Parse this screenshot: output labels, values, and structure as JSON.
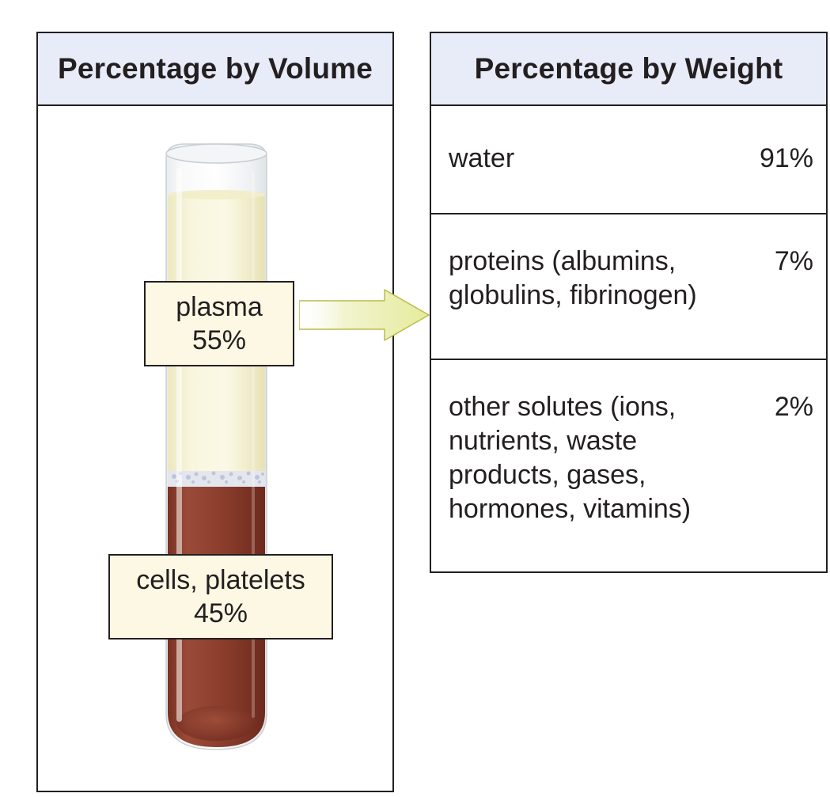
{
  "volume_panel": {
    "title": "Percentage by Volume",
    "plasma": {
      "label": "plasma",
      "percent": "55%"
    },
    "cells": {
      "label": "cells, platelets",
      "percent": "45%"
    }
  },
  "weight_panel": {
    "title": "Percentage by Weight",
    "rows": [
      {
        "name": "water",
        "percent": "91%"
      },
      {
        "name": "proteins (albumins,\nglobulins, fibrinogen)",
        "percent": "7%"
      },
      {
        "name": "other solutes (ions,\nnutrients, waste\nproducts, gases,\nhormones, vitamins)",
        "percent": "2%"
      }
    ]
  },
  "colors": {
    "header_fill": "#e8ebf8",
    "plasma_fill": "#f6f3d6",
    "cells_fill": "#8a3a2a",
    "label_fill": "#fcf8e4",
    "arrow_fill": "#eef2bd",
    "outline": "#231f20"
  }
}
